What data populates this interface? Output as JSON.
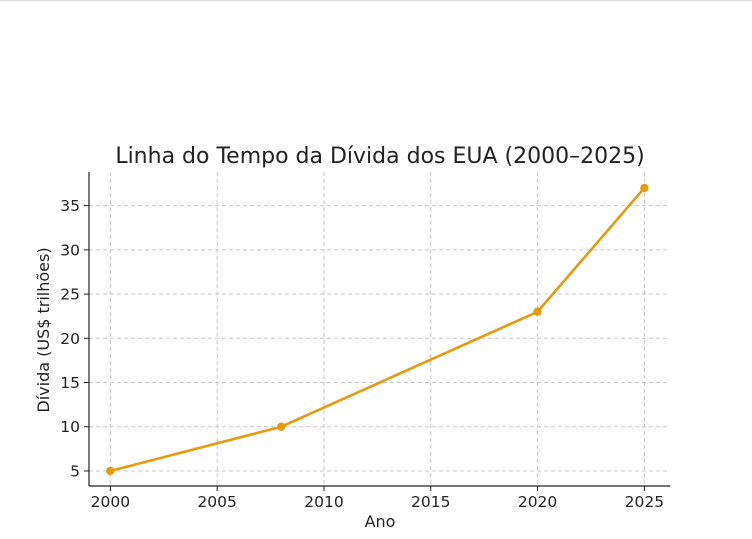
{
  "chart_data": {
    "type": "line",
    "title": "Linha do Tempo da Dívida dos EUA (2000–2025)",
    "xlabel": "Ano",
    "ylabel": "Dívida (US$ trilhões)",
    "xlim": [
      1999,
      2026.2
    ],
    "ylim": [
      3.3,
      38.8
    ],
    "xticks": [
      2000,
      2005,
      2010,
      2015,
      2020,
      2025
    ],
    "yticks": [
      5,
      10,
      15,
      20,
      25,
      30,
      35
    ],
    "grid": true,
    "series": [
      {
        "color": "#e49b0f",
        "x": [
          2000,
          2008,
          2020,
          2025
        ],
        "y": [
          5,
          10,
          23,
          37
        ]
      }
    ]
  }
}
